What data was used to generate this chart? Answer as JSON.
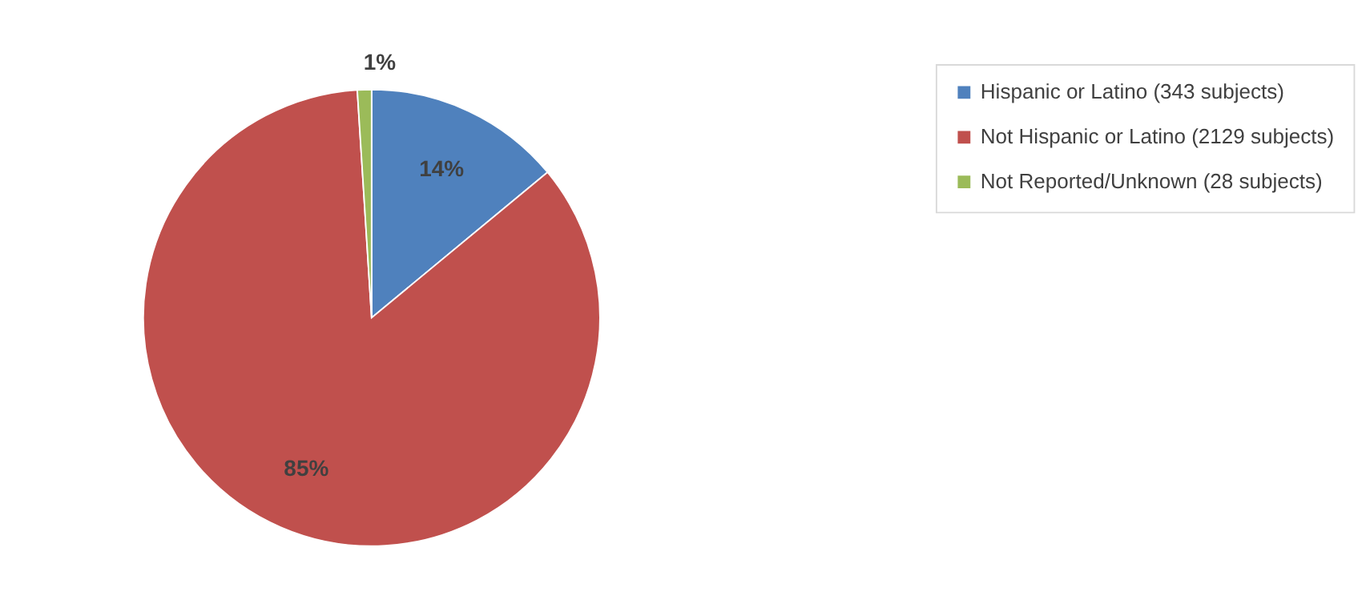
{
  "chart_data": {
    "type": "pie",
    "categories": [
      "Hispanic or Latino (343 subjects)",
      "Not Hispanic or Latino (2129 subjects)",
      "Not Reported/Unknown (28 subjects)"
    ],
    "values": [
      14,
      85,
      1
    ],
    "colors": [
      "#4f81bd",
      "#c0504d",
      "#9bbb59"
    ],
    "value_labels": [
      "14%",
      "85%",
      "1%"
    ],
    "legend": "right"
  }
}
